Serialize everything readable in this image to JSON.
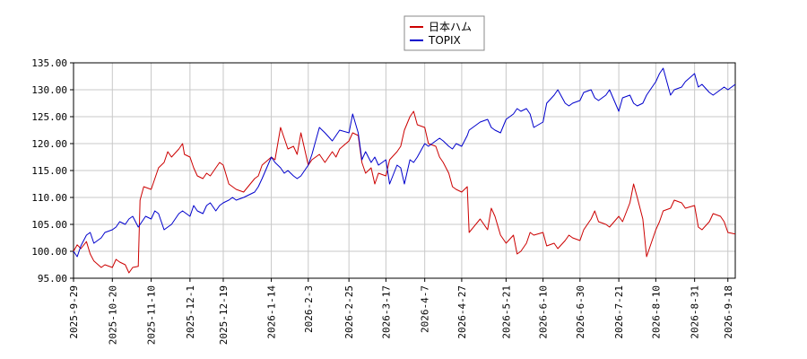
{
  "chart_data": {
    "type": "line",
    "title": "",
    "xlabel": "",
    "ylabel": "",
    "ylim": [
      95,
      135
    ],
    "y_ticks": [
      "95.00",
      "100.00",
      "105.00",
      "110.00",
      "115.00",
      "120.00",
      "125.00",
      "130.00",
      "135.00"
    ],
    "x_range": [
      "2025-09-29",
      "2026-09-22"
    ],
    "x_ticks": [
      "2025-9-29",
      "2025-10-20",
      "2025-11-10",
      "2025-12-1",
      "2025-12-19",
      "2026-1-14",
      "2026-2-3",
      "2026-2-25",
      "2026-3-17",
      "2026-4-7",
      "2026-4-27",
      "2026-5-21",
      "2026-6-10",
      "2026-6-30",
      "2026-7-21",
      "2026-8-10",
      "2026-8-31",
      "2026-9-18"
    ],
    "grid": true,
    "legend_position": "top-center",
    "series": [
      {
        "name": "日本ハム",
        "color": "#cc0000",
        "points": [
          [
            "2025-09-29",
            100.0
          ],
          [
            "2025-10-01",
            101.2
          ],
          [
            "2025-10-03",
            100.5
          ],
          [
            "2025-10-06",
            101.8
          ],
          [
            "2025-10-08",
            99.5
          ],
          [
            "2025-10-10",
            98.2
          ],
          [
            "2025-10-14",
            97.0
          ],
          [
            "2025-10-16",
            97.5
          ],
          [
            "2025-10-20",
            97.0
          ],
          [
            "2025-10-22",
            98.5
          ],
          [
            "2025-10-24",
            98.0
          ],
          [
            "2025-10-27",
            97.5
          ],
          [
            "2025-10-29",
            96.0
          ],
          [
            "2025-10-31",
            97.0
          ],
          [
            "2025-11-03",
            97.2
          ],
          [
            "2025-11-04",
            109.5
          ],
          [
            "2025-11-06",
            112.0
          ],
          [
            "2025-11-10",
            111.5
          ],
          [
            "2025-11-12",
            113.5
          ],
          [
            "2025-11-14",
            115.5
          ],
          [
            "2025-11-17",
            116.5
          ],
          [
            "2025-11-19",
            118.5
          ],
          [
            "2025-11-21",
            117.5
          ],
          [
            "2025-11-25",
            119.0
          ],
          [
            "2025-11-27",
            120.0
          ],
          [
            "2025-11-28",
            118.0
          ],
          [
            "2025-12-01",
            117.5
          ],
          [
            "2025-12-03",
            115.5
          ],
          [
            "2025-12-05",
            114.0
          ],
          [
            "2025-12-08",
            113.5
          ],
          [
            "2025-12-10",
            114.5
          ],
          [
            "2025-12-12",
            114.0
          ],
          [
            "2025-12-15",
            115.5
          ],
          [
            "2025-12-17",
            116.5
          ],
          [
            "2025-12-19",
            116.0
          ],
          [
            "2025-12-22",
            112.5
          ],
          [
            "2025-12-24",
            112.0
          ],
          [
            "2025-12-26",
            111.5
          ],
          [
            "2025-12-30",
            111.0
          ],
          [
            "2026-01-05",
            113.5
          ],
          [
            "2026-01-07",
            114.0
          ],
          [
            "2026-01-09",
            116.0
          ],
          [
            "2026-01-14",
            117.5
          ],
          [
            "2026-01-16",
            117.0
          ],
          [
            "2026-01-19",
            123.0
          ],
          [
            "2026-01-21",
            121.0
          ],
          [
            "2026-01-23",
            119.0
          ],
          [
            "2026-01-26",
            119.5
          ],
          [
            "2026-01-28",
            118.0
          ],
          [
            "2026-01-30",
            122.0
          ],
          [
            "2026-02-03",
            116.0
          ],
          [
            "2026-02-05",
            117.0
          ],
          [
            "2026-02-09",
            118.0
          ],
          [
            "2026-02-12",
            116.5
          ],
          [
            "2026-02-16",
            118.5
          ],
          [
            "2026-02-18",
            117.5
          ],
          [
            "2026-02-20",
            119.0
          ],
          [
            "2026-02-25",
            120.5
          ],
          [
            "2026-02-27",
            122.0
          ],
          [
            "2026-03-02",
            121.5
          ],
          [
            "2026-03-04",
            116.5
          ],
          [
            "2026-03-06",
            114.5
          ],
          [
            "2026-03-09",
            115.5
          ],
          [
            "2026-03-11",
            112.5
          ],
          [
            "2026-03-13",
            114.5
          ],
          [
            "2026-03-17",
            114.0
          ],
          [
            "2026-03-19",
            117.0
          ],
          [
            "2026-03-23",
            118.5
          ],
          [
            "2026-03-25",
            119.5
          ],
          [
            "2026-03-27",
            122.5
          ],
          [
            "2026-03-30",
            125.0
          ],
          [
            "2026-04-01",
            126.0
          ],
          [
            "2026-04-03",
            123.5
          ],
          [
            "2026-04-07",
            123.0
          ],
          [
            "2026-04-09",
            120.0
          ],
          [
            "2026-04-13",
            119.5
          ],
          [
            "2026-04-15",
            117.5
          ],
          [
            "2026-04-17",
            116.5
          ],
          [
            "2026-04-20",
            114.5
          ],
          [
            "2026-04-22",
            112.0
          ],
          [
            "2026-04-24",
            111.5
          ],
          [
            "2026-04-27",
            111.0
          ],
          [
            "2026-04-30",
            112.0
          ],
          [
            "2026-05-01",
            103.5
          ],
          [
            "2026-05-07",
            106.0
          ],
          [
            "2026-05-11",
            104.0
          ],
          [
            "2026-05-13",
            108.0
          ],
          [
            "2026-05-15",
            106.5
          ],
          [
            "2026-05-18",
            103.0
          ],
          [
            "2026-05-21",
            101.5
          ],
          [
            "2026-05-25",
            103.0
          ],
          [
            "2026-05-27",
            99.5
          ],
          [
            "2026-05-29",
            100.0
          ],
          [
            "2026-06-01",
            101.5
          ],
          [
            "2026-06-03",
            103.5
          ],
          [
            "2026-06-05",
            103.0
          ],
          [
            "2026-06-10",
            103.5
          ],
          [
            "2026-06-12",
            101.0
          ],
          [
            "2026-06-16",
            101.5
          ],
          [
            "2026-06-18",
            100.5
          ],
          [
            "2026-06-22",
            102.0
          ],
          [
            "2026-06-24",
            103.0
          ],
          [
            "2026-06-26",
            102.5
          ],
          [
            "2026-06-30",
            102.0
          ],
          [
            "2026-07-02",
            104.0
          ],
          [
            "2026-07-06",
            106.0
          ],
          [
            "2026-07-08",
            107.5
          ],
          [
            "2026-07-10",
            105.5
          ],
          [
            "2026-07-14",
            105.0
          ],
          [
            "2026-07-16",
            104.5
          ],
          [
            "2026-07-21",
            106.5
          ],
          [
            "2026-07-23",
            105.5
          ],
          [
            "2026-07-27",
            109.0
          ],
          [
            "2026-07-29",
            112.5
          ],
          [
            "2026-07-31",
            110.0
          ],
          [
            "2026-08-03",
            106.0
          ],
          [
            "2026-08-05",
            99.0
          ],
          [
            "2026-08-07",
            101.0
          ],
          [
            "2026-08-10",
            104.0
          ],
          [
            "2026-08-12",
            105.5
          ],
          [
            "2026-08-14",
            107.5
          ],
          [
            "2026-08-18",
            108.0
          ],
          [
            "2026-08-20",
            109.5
          ],
          [
            "2026-08-24",
            109.0
          ],
          [
            "2026-08-26",
            108.0
          ],
          [
            "2026-08-31",
            108.5
          ],
          [
            "2026-09-02",
            104.5
          ],
          [
            "2026-09-04",
            104.0
          ],
          [
            "2026-09-08",
            105.5
          ],
          [
            "2026-09-10",
            107.0
          ],
          [
            "2026-09-14",
            106.5
          ],
          [
            "2026-09-16",
            105.5
          ],
          [
            "2026-09-18",
            103.5
          ],
          [
            "2026-09-22",
            103.2
          ]
        ]
      },
      {
        "name": "TOPIX",
        "color": "#0000cc",
        "points": [
          [
            "2025-09-29",
            100.0
          ],
          [
            "2025-10-01",
            99.0
          ],
          [
            "2025-10-03",
            101.0
          ],
          [
            "2025-10-06",
            103.0
          ],
          [
            "2025-10-08",
            103.5
          ],
          [
            "2025-10-10",
            101.5
          ],
          [
            "2025-10-14",
            102.5
          ],
          [
            "2025-10-16",
            103.5
          ],
          [
            "2025-10-20",
            104.0
          ],
          [
            "2025-10-22",
            104.5
          ],
          [
            "2025-10-24",
            105.5
          ],
          [
            "2025-10-27",
            105.0
          ],
          [
            "2025-10-29",
            106.0
          ],
          [
            "2025-10-31",
            106.5
          ],
          [
            "2025-11-03",
            104.5
          ],
          [
            "2025-11-05",
            105.5
          ],
          [
            "2025-11-07",
            106.5
          ],
          [
            "2025-11-10",
            106.0
          ],
          [
            "2025-11-12",
            107.5
          ],
          [
            "2025-11-14",
            107.0
          ],
          [
            "2025-11-17",
            104.0
          ],
          [
            "2025-11-19",
            104.5
          ],
          [
            "2025-11-21",
            105.0
          ],
          [
            "2025-11-25",
            107.0
          ],
          [
            "2025-11-27",
            107.5
          ],
          [
            "2025-12-01",
            106.5
          ],
          [
            "2025-12-03",
            108.5
          ],
          [
            "2025-12-05",
            107.5
          ],
          [
            "2025-12-08",
            107.0
          ],
          [
            "2025-12-10",
            108.5
          ],
          [
            "2025-12-12",
            109.0
          ],
          [
            "2025-12-15",
            107.5
          ],
          [
            "2025-12-17",
            108.5
          ],
          [
            "2025-12-19",
            109.0
          ],
          [
            "2025-12-22",
            109.5
          ],
          [
            "2025-12-24",
            110.0
          ],
          [
            "2025-12-26",
            109.5
          ],
          [
            "2025-12-30",
            110.0
          ],
          [
            "2026-01-05",
            111.0
          ],
          [
            "2026-01-07",
            112.0
          ],
          [
            "2026-01-09",
            113.5
          ],
          [
            "2026-01-14",
            117.5
          ],
          [
            "2026-01-16",
            116.5
          ],
          [
            "2026-01-19",
            115.5
          ],
          [
            "2026-01-21",
            114.5
          ],
          [
            "2026-01-23",
            115.0
          ],
          [
            "2026-01-26",
            114.0
          ],
          [
            "2026-01-28",
            113.5
          ],
          [
            "2026-01-30",
            114.0
          ],
          [
            "2026-02-03",
            116.0
          ],
          [
            "2026-02-05",
            118.0
          ],
          [
            "2026-02-09",
            123.0
          ],
          [
            "2026-02-12",
            122.0
          ],
          [
            "2026-02-16",
            120.5
          ],
          [
            "2026-02-18",
            121.5
          ],
          [
            "2026-02-20",
            122.5
          ],
          [
            "2026-02-25",
            122.0
          ],
          [
            "2026-02-27",
            125.5
          ],
          [
            "2026-03-02",
            122.0
          ],
          [
            "2026-03-04",
            117.0
          ],
          [
            "2026-03-06",
            118.5
          ],
          [
            "2026-03-09",
            116.5
          ],
          [
            "2026-03-11",
            117.5
          ],
          [
            "2026-03-13",
            116.0
          ],
          [
            "2026-03-17",
            117.0
          ],
          [
            "2026-03-19",
            112.5
          ],
          [
            "2026-03-23",
            116.0
          ],
          [
            "2026-03-25",
            115.5
          ],
          [
            "2026-03-27",
            112.5
          ],
          [
            "2026-03-30",
            117.0
          ],
          [
            "2026-04-01",
            116.5
          ],
          [
            "2026-04-03",
            117.5
          ],
          [
            "2026-04-07",
            120.0
          ],
          [
            "2026-04-09",
            119.5
          ],
          [
            "2026-04-13",
            120.5
          ],
          [
            "2026-04-15",
            121.0
          ],
          [
            "2026-04-17",
            120.5
          ],
          [
            "2026-04-20",
            119.5
          ],
          [
            "2026-04-22",
            119.0
          ],
          [
            "2026-04-24",
            120.0
          ],
          [
            "2026-04-27",
            119.5
          ],
          [
            "2026-04-30",
            121.5
          ],
          [
            "2026-05-01",
            122.5
          ],
          [
            "2026-05-07",
            124.0
          ],
          [
            "2026-05-11",
            124.5
          ],
          [
            "2026-05-13",
            123.0
          ],
          [
            "2026-05-15",
            122.5
          ],
          [
            "2026-05-18",
            122.0
          ],
          [
            "2026-05-21",
            124.5
          ],
          [
            "2026-05-25",
            125.5
          ],
          [
            "2026-05-27",
            126.5
          ],
          [
            "2026-05-29",
            126.0
          ],
          [
            "2026-06-01",
            126.5
          ],
          [
            "2026-06-03",
            125.5
          ],
          [
            "2026-06-05",
            123.0
          ],
          [
            "2026-06-10",
            124.0
          ],
          [
            "2026-06-12",
            127.5
          ],
          [
            "2026-06-16",
            129.0
          ],
          [
            "2026-06-18",
            130.0
          ],
          [
            "2026-06-22",
            127.5
          ],
          [
            "2026-06-24",
            127.0
          ],
          [
            "2026-06-26",
            127.5
          ],
          [
            "2026-06-30",
            128.0
          ],
          [
            "2026-07-02",
            129.5
          ],
          [
            "2026-07-06",
            130.0
          ],
          [
            "2026-07-08",
            128.5
          ],
          [
            "2026-07-10",
            128.0
          ],
          [
            "2026-07-14",
            129.0
          ],
          [
            "2026-07-16",
            130.0
          ],
          [
            "2026-07-21",
            126.0
          ],
          [
            "2026-07-23",
            128.5
          ],
          [
            "2026-07-27",
            129.0
          ],
          [
            "2026-07-29",
            127.5
          ],
          [
            "2026-07-31",
            127.0
          ],
          [
            "2026-08-03",
            127.5
          ],
          [
            "2026-08-05",
            129.0
          ],
          [
            "2026-08-07",
            130.0
          ],
          [
            "2026-08-10",
            131.5
          ],
          [
            "2026-08-12",
            133.0
          ],
          [
            "2026-08-14",
            134.0
          ],
          [
            "2026-08-18",
            129.0
          ],
          [
            "2026-08-20",
            130.0
          ],
          [
            "2026-08-24",
            130.5
          ],
          [
            "2026-08-26",
            131.5
          ],
          [
            "2026-08-31",
            133.0
          ],
          [
            "2026-09-02",
            130.5
          ],
          [
            "2026-09-04",
            131.0
          ],
          [
            "2026-09-08",
            129.5
          ],
          [
            "2026-09-10",
            129.0
          ],
          [
            "2026-09-14",
            130.0
          ],
          [
            "2026-09-16",
            130.5
          ],
          [
            "2026-09-18",
            130.0
          ],
          [
            "2026-09-22",
            131.0
          ]
        ]
      }
    ]
  }
}
